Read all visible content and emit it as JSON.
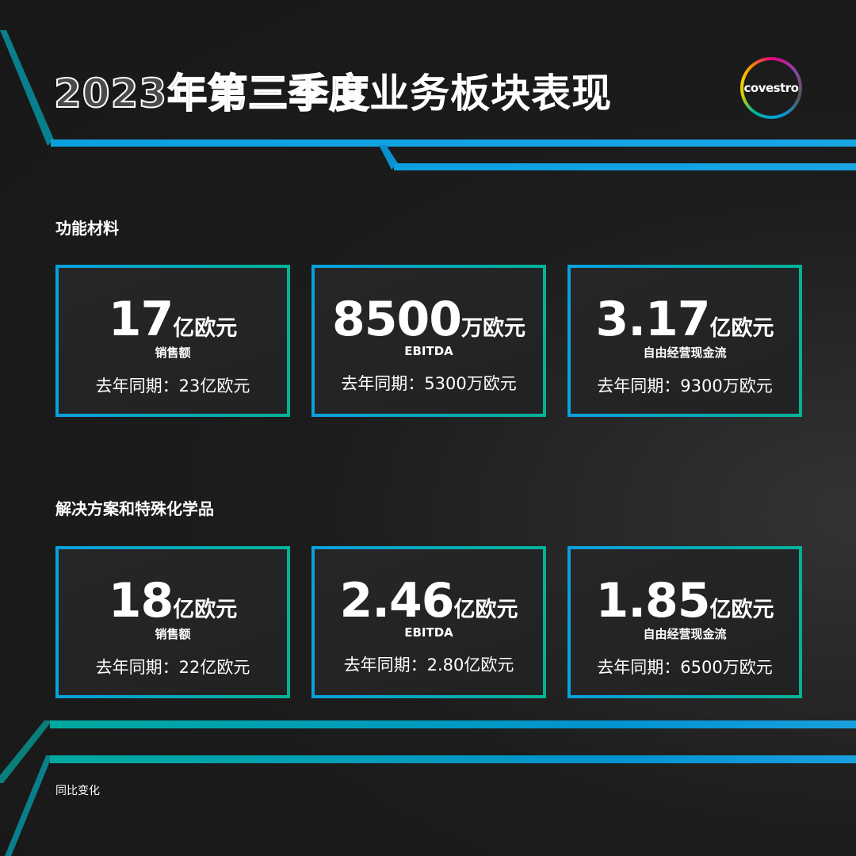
{
  "title": {
    "outline": "2023年第三季度",
    "solid": "业务板块表现"
  },
  "logo": "covestro",
  "sections": [
    {
      "name": "功能材料",
      "cards": [
        {
          "value": "17",
          "unit": "亿欧元",
          "label": "销售额",
          "previous": "去年同期：23亿欧元"
        },
        {
          "value": "8500",
          "unit": "万欧元",
          "label": "EBITDA",
          "previous": "去年同期：5300万欧元"
        },
        {
          "value": "3.17",
          "unit": "亿欧元",
          "label": "自由经营现金流",
          "previous": "去年同期：9300万欧元"
        }
      ]
    },
    {
      "name": "解决方案和特殊化学品",
      "cards": [
        {
          "value": "18",
          "unit": "亿欧元",
          "label": "销售额",
          "previous": "去年同期：22亿欧元"
        },
        {
          "value": "2.46",
          "unit": "亿欧元",
          "label": "EBITDA",
          "previous": "去年同期：2.80亿欧元"
        },
        {
          "value": "1.85",
          "unit": "亿欧元",
          "label": "自由经营现金流",
          "previous": "去年同期：6500万欧元"
        }
      ]
    }
  ],
  "footnote": "同比变化",
  "colors": {
    "blue": "#0aa0e0",
    "teal": "#00a99d",
    "background": "#1c1c1c"
  }
}
